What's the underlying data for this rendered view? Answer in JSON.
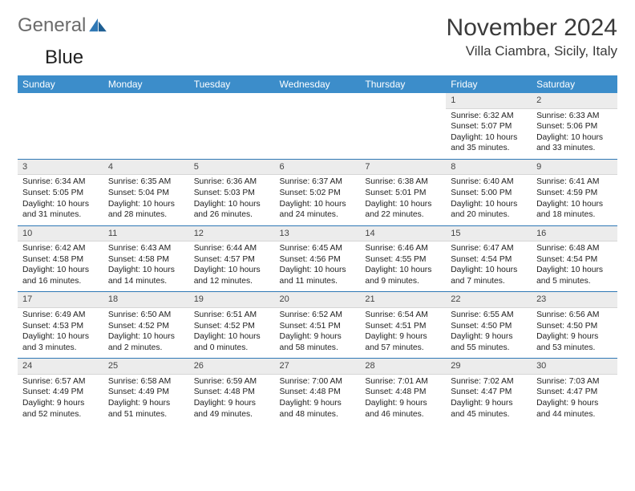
{
  "logo": {
    "part1": "General",
    "part2": "Blue"
  },
  "title": "November 2024",
  "location": "Villa Ciambra, Sicily, Italy",
  "colors": {
    "header_bg": "#3c8dca",
    "header_fg": "#ffffff",
    "daynum_bg": "#ececec",
    "rule": "#2f78b5",
    "logo_gray": "#6b6b6b",
    "logo_blue": "#2f78b5"
  },
  "weekdays": [
    "Sunday",
    "Monday",
    "Tuesday",
    "Wednesday",
    "Thursday",
    "Friday",
    "Saturday"
  ],
  "weeks": [
    [
      null,
      null,
      null,
      null,
      null,
      {
        "n": "1",
        "sr": "6:32 AM",
        "ss": "5:07 PM",
        "d1": "10 hours",
        "d2": "and 35 minutes."
      },
      {
        "n": "2",
        "sr": "6:33 AM",
        "ss": "5:06 PM",
        "d1": "10 hours",
        "d2": "and 33 minutes."
      }
    ],
    [
      {
        "n": "3",
        "sr": "6:34 AM",
        "ss": "5:05 PM",
        "d1": "10 hours",
        "d2": "and 31 minutes."
      },
      {
        "n": "4",
        "sr": "6:35 AM",
        "ss": "5:04 PM",
        "d1": "10 hours",
        "d2": "and 28 minutes."
      },
      {
        "n": "5",
        "sr": "6:36 AM",
        "ss": "5:03 PM",
        "d1": "10 hours",
        "d2": "and 26 minutes."
      },
      {
        "n": "6",
        "sr": "6:37 AM",
        "ss": "5:02 PM",
        "d1": "10 hours",
        "d2": "and 24 minutes."
      },
      {
        "n": "7",
        "sr": "6:38 AM",
        "ss": "5:01 PM",
        "d1": "10 hours",
        "d2": "and 22 minutes."
      },
      {
        "n": "8",
        "sr": "6:40 AM",
        "ss": "5:00 PM",
        "d1": "10 hours",
        "d2": "and 20 minutes."
      },
      {
        "n": "9",
        "sr": "6:41 AM",
        "ss": "4:59 PM",
        "d1": "10 hours",
        "d2": "and 18 minutes."
      }
    ],
    [
      {
        "n": "10",
        "sr": "6:42 AM",
        "ss": "4:58 PM",
        "d1": "10 hours",
        "d2": "and 16 minutes."
      },
      {
        "n": "11",
        "sr": "6:43 AM",
        "ss": "4:58 PM",
        "d1": "10 hours",
        "d2": "and 14 minutes."
      },
      {
        "n": "12",
        "sr": "6:44 AM",
        "ss": "4:57 PM",
        "d1": "10 hours",
        "d2": "and 12 minutes."
      },
      {
        "n": "13",
        "sr": "6:45 AM",
        "ss": "4:56 PM",
        "d1": "10 hours",
        "d2": "and 11 minutes."
      },
      {
        "n": "14",
        "sr": "6:46 AM",
        "ss": "4:55 PM",
        "d1": "10 hours",
        "d2": "and 9 minutes."
      },
      {
        "n": "15",
        "sr": "6:47 AM",
        "ss": "4:54 PM",
        "d1": "10 hours",
        "d2": "and 7 minutes."
      },
      {
        "n": "16",
        "sr": "6:48 AM",
        "ss": "4:54 PM",
        "d1": "10 hours",
        "d2": "and 5 minutes."
      }
    ],
    [
      {
        "n": "17",
        "sr": "6:49 AM",
        "ss": "4:53 PM",
        "d1": "10 hours",
        "d2": "and 3 minutes."
      },
      {
        "n": "18",
        "sr": "6:50 AM",
        "ss": "4:52 PM",
        "d1": "10 hours",
        "d2": "and 2 minutes."
      },
      {
        "n": "19",
        "sr": "6:51 AM",
        "ss": "4:52 PM",
        "d1": "10 hours",
        "d2": "and 0 minutes."
      },
      {
        "n": "20",
        "sr": "6:52 AM",
        "ss": "4:51 PM",
        "d1": "9 hours",
        "d2": "and 58 minutes."
      },
      {
        "n": "21",
        "sr": "6:54 AM",
        "ss": "4:51 PM",
        "d1": "9 hours",
        "d2": "and 57 minutes."
      },
      {
        "n": "22",
        "sr": "6:55 AM",
        "ss": "4:50 PM",
        "d1": "9 hours",
        "d2": "and 55 minutes."
      },
      {
        "n": "23",
        "sr": "6:56 AM",
        "ss": "4:50 PM",
        "d1": "9 hours",
        "d2": "and 53 minutes."
      }
    ],
    [
      {
        "n": "24",
        "sr": "6:57 AM",
        "ss": "4:49 PM",
        "d1": "9 hours",
        "d2": "and 52 minutes."
      },
      {
        "n": "25",
        "sr": "6:58 AM",
        "ss": "4:49 PM",
        "d1": "9 hours",
        "d2": "and 51 minutes."
      },
      {
        "n": "26",
        "sr": "6:59 AM",
        "ss": "4:48 PM",
        "d1": "9 hours",
        "d2": "and 49 minutes."
      },
      {
        "n": "27",
        "sr": "7:00 AM",
        "ss": "4:48 PM",
        "d1": "9 hours",
        "d2": "and 48 minutes."
      },
      {
        "n": "28",
        "sr": "7:01 AM",
        "ss": "4:48 PM",
        "d1": "9 hours",
        "d2": "and 46 minutes."
      },
      {
        "n": "29",
        "sr": "7:02 AM",
        "ss": "4:47 PM",
        "d1": "9 hours",
        "d2": "and 45 minutes."
      },
      {
        "n": "30",
        "sr": "7:03 AM",
        "ss": "4:47 PM",
        "d1": "9 hours",
        "d2": "and 44 minutes."
      }
    ]
  ],
  "labels": {
    "sunrise": "Sunrise: ",
    "sunset": "Sunset: ",
    "daylight": "Daylight: "
  }
}
